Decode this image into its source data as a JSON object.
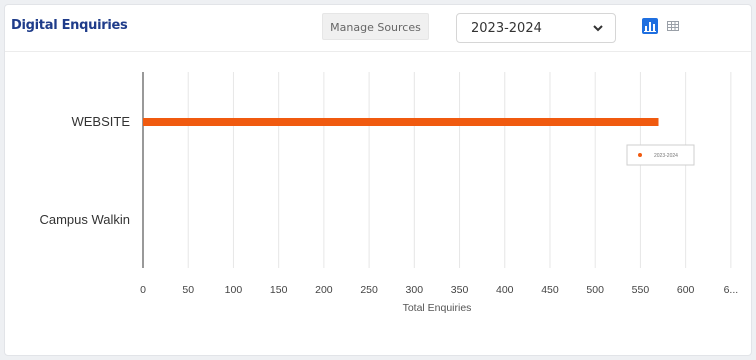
{
  "widget": {
    "title": "Digital Enquiries",
    "manage_sources_label": "Manage Sources",
    "year_select": {
      "selected": "2023-2024"
    },
    "view_toggle": [
      "chart-view-icon",
      "table-view-icon"
    ],
    "accent_color": "#1f6fe0"
  },
  "chart_data": {
    "type": "bar",
    "orientation": "horizontal",
    "categories": [
      "WEBSITE",
      "Campus Walkin"
    ],
    "series": [
      {
        "name": "2023-2024",
        "values": [
          570,
          0
        ],
        "color": "#f05a0f"
      }
    ],
    "xlabel": "Total Enquiries",
    "ylabel": "",
    "xlim": [
      0,
      650
    ],
    "x_ticks": [
      "0",
      "50",
      "100",
      "150",
      "200",
      "250",
      "300",
      "350",
      "400",
      "450",
      "500",
      "550",
      "600",
      "6..."
    ],
    "grid": "vertical",
    "legend": "right"
  }
}
